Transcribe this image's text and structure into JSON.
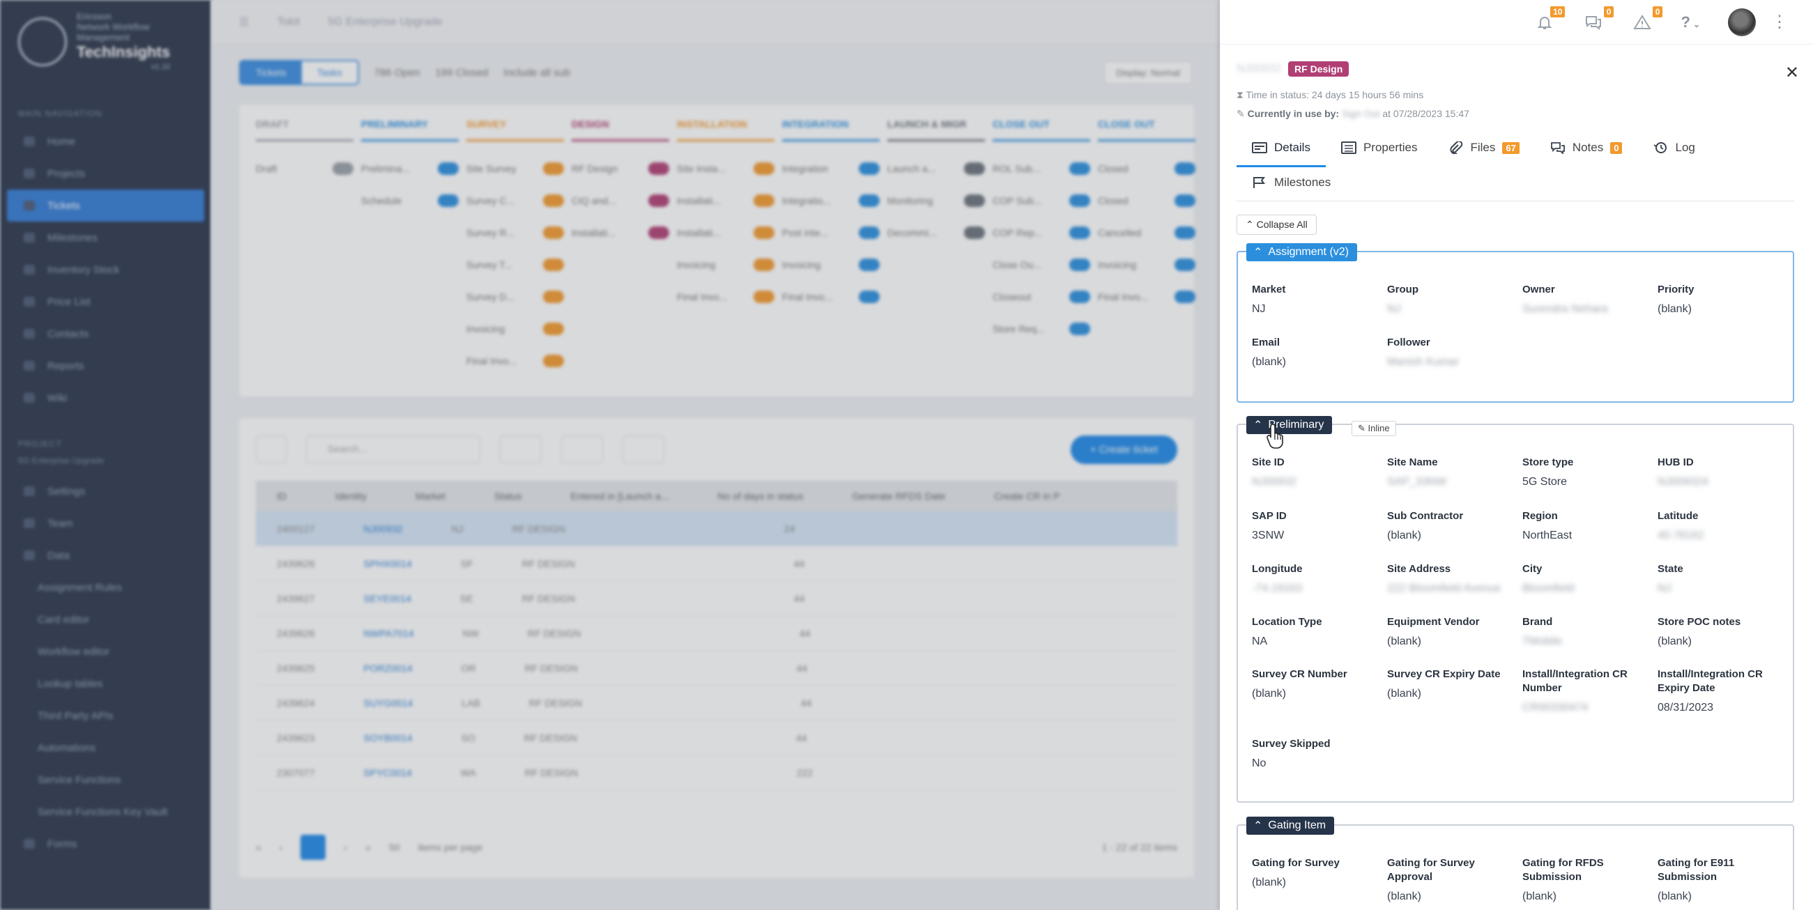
{
  "sidebar": {
    "brand_lines": [
      "Ericsson",
      "Network Workflow",
      "Management"
    ],
    "brand_name": "TechInsights",
    "version": "v1.10",
    "section_main": "MAIN NAVIGATION",
    "items": [
      "Home",
      "Projects",
      "Tickets",
      "Milestones",
      "Inventory Stock",
      "Price List",
      "Contacts",
      "Reports",
      "Wiki"
    ],
    "section_project": "PROJECT",
    "project_name": "5G Enterprise Upgrade",
    "project_items": [
      "Settings",
      "Team",
      "Data",
      "Assignment Rules",
      "Card editor",
      "Workflow editor",
      "Lookup tables",
      "Third Party APIs",
      "Automations",
      "Service Functions",
      "Service Functions Key Vault",
      "Forms"
    ]
  },
  "main": {
    "topbar": {
      "crumb1": "Tokit",
      "crumb2": "5G Enterprise Upgrade"
    },
    "toolbar": {
      "view_tickets": "Tickets",
      "view_tasks": "Tasks",
      "open": "786 Open",
      "closed": "199 Closed",
      "include": "Include all sub",
      "display": "Display: Normal"
    },
    "stages": [
      {
        "name": "DRAFT",
        "color": "#9aa0a8",
        "rows": [
          "Draft"
        ]
      },
      {
        "name": "PRELIMINARY",
        "color": "#2b8fde",
        "rows": [
          "Prelimina...",
          "Schedule"
        ]
      },
      {
        "name": "SURVEY",
        "color": "#f29a2e",
        "rows": [
          "Site Survey",
          "Survey C...",
          "Survey R...",
          "Survey T...",
          "Survey D...",
          "Invoicing",
          "Final Invo..."
        ]
      },
      {
        "name": "DESIGN",
        "color": "#b03f74",
        "rows": [
          "RF Design",
          "CIQ and...",
          "Installati..."
        ]
      },
      {
        "name": "INSTALLATION",
        "color": "#f29a2e",
        "rows": [
          "Site Insta...",
          "Installati...",
          "Installati...",
          "Invoicing",
          "Final Invo..."
        ]
      },
      {
        "name": "INTEGRATION",
        "color": "#2b8fde",
        "rows": [
          "Integration",
          "Integratio...",
          "Post inte...",
          "Invoicing",
          "Final Invo..."
        ]
      },
      {
        "name": "LAUNCH & MIGR",
        "color": "#6b737c",
        "rows": [
          "Launch a...",
          "Monitoring",
          "Decommi..."
        ]
      },
      {
        "name": "CLOSE OUT",
        "color": "#2b8fde",
        "rows": [
          "ROL Sub...",
          "COP Sub...",
          "COP Rep...",
          "Close Ou...",
          "Closeout",
          "Store Req..."
        ]
      },
      {
        "name": "CLOSE OUT",
        "color": "#2b8fde",
        "rows": [
          "Closed",
          "Closed",
          "Cancelled",
          "Invoicing",
          "Final Invo..."
        ]
      }
    ],
    "grid": {
      "search_placeholder": "Search...",
      "create_label": "+ Create ticket",
      "columns": [
        "ID",
        "Identity",
        "Market",
        "Status",
        "Entered in [Launch a...",
        "No of days in status",
        "Generate RFDS Date",
        "Create CR in P"
      ],
      "rows": [
        {
          "id": "2400127",
          "identity": "NJ00932",
          "market": "NJ",
          "status": "RF DESIGN",
          "days": "24"
        },
        {
          "id": "2439626",
          "identity": "SPHX0014",
          "market": "SF",
          "status": "RF DESIGN",
          "days": "44"
        },
        {
          "id": "2439627",
          "identity": "SEYE0014",
          "market": "SE",
          "status": "RF DESIGN",
          "days": "44"
        },
        {
          "id": "2439626",
          "identity": "NWPA7014",
          "market": "NW",
          "status": "RF DESIGN",
          "days": "44"
        },
        {
          "id": "2439625",
          "identity": "PORZ0014",
          "market": "OR",
          "status": "RF DESIGN",
          "days": "44"
        },
        {
          "id": "2439624",
          "identity": "SUYG0014",
          "market": "LAB",
          "status": "RF DESIGN",
          "days": "44"
        },
        {
          "id": "2439623",
          "identity": "SOYB0014",
          "market": "SO",
          "status": "RF DESIGN",
          "days": "44"
        },
        {
          "id": "2307077",
          "identity": "SPYC0014",
          "market": "WA",
          "status": "RF DESIGN",
          "days": "222"
        }
      ],
      "page_size": "50",
      "items_per_page": "items per page",
      "range": "1 - 22 of 22 items"
    }
  },
  "header": {
    "notifications_count": "10",
    "messages_count": "0",
    "alerts_count": "0",
    "help": "?"
  },
  "panel": {
    "site_id": "NJ00932",
    "stage_tag": "RF Design",
    "time_in_status_label": "Time in status:",
    "time_in_status": "24 days 15 hours 56 mins",
    "in_use_label": "Currently in use by:",
    "in_use_user": "Sign Out",
    "in_use_at": "at 07/28/2023 15:47",
    "tabs": [
      {
        "label": "Details",
        "count": ""
      },
      {
        "label": "Properties",
        "count": ""
      },
      {
        "label": "Files",
        "count": "67"
      },
      {
        "label": "Notes",
        "count": "0"
      },
      {
        "label": "Log",
        "count": ""
      },
      {
        "label": "Milestones",
        "count": ""
      }
    ],
    "collapse_all": "Collapse All",
    "assignment": {
      "title": "Assignment (v2)",
      "fields": [
        {
          "label": "Market",
          "value": "NJ"
        },
        {
          "label": "Group",
          "value": "NJ"
        },
        {
          "label": "Owner",
          "value": "Surendra Nehara"
        },
        {
          "label": "Priority",
          "value": "(blank)"
        },
        {
          "label": "Email",
          "value": "(blank)"
        },
        {
          "label": "Follower",
          "value": "Manish Kumar"
        }
      ]
    },
    "preliminary": {
      "title": "Preliminary",
      "inline": "Inline",
      "fields": [
        {
          "label": "Site ID",
          "value": "NJ00932"
        },
        {
          "label": "Site Name",
          "value": "SAP_33NW"
        },
        {
          "label": "Store type",
          "value": "5G Store"
        },
        {
          "label": "HUB ID",
          "value": "NJ009324"
        },
        {
          "label": "SAP ID",
          "value": "3SNW"
        },
        {
          "label": "Sub Contractor",
          "value": "(blank)"
        },
        {
          "label": "Region",
          "value": "NorthEast"
        },
        {
          "label": "Latitude",
          "value": "40.78162"
        },
        {
          "label": "Longitude",
          "value": "-74.19163"
        },
        {
          "label": "Site Address",
          "value": "222 Bloomfield Avenue"
        },
        {
          "label": "City",
          "value": "Bloomfield"
        },
        {
          "label": "State",
          "value": "NJ"
        },
        {
          "label": "Location Type",
          "value": "NA"
        },
        {
          "label": "Equipment Vendor",
          "value": "(blank)"
        },
        {
          "label": "Brand",
          "value": "TMobile"
        },
        {
          "label": "Store POC notes",
          "value": "(blank)"
        },
        {
          "label": "Survey CR Number",
          "value": "(blank)"
        },
        {
          "label": "Survey CR Expiry Date",
          "value": "(blank)"
        },
        {
          "label": "Install/Integration CR Number",
          "value": "CR00330474"
        },
        {
          "label": "Install/Integration CR Expiry Date",
          "value": "08/31/2023"
        },
        {
          "label": "Survey Skipped",
          "value": "No"
        }
      ]
    },
    "gating": {
      "title": "Gating Item",
      "fields": [
        {
          "label": "Gating for Survey",
          "value": "(blank)"
        },
        {
          "label": "Gating for Survey Approval",
          "value": "(blank)"
        },
        {
          "label": "Gating for RFDS Submission",
          "value": "(blank)"
        },
        {
          "label": "Gating for E911 Submission",
          "value": "(blank)"
        }
      ]
    }
  }
}
